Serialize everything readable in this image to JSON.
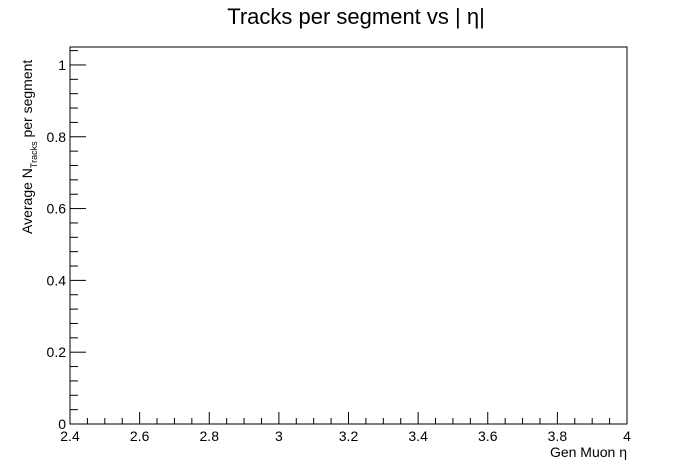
{
  "chart_data": {
    "type": "line",
    "title": "Tracks per segment vs | η|",
    "xlabel": "Gen Muon η",
    "ylabel": {
      "prefix": "Average N",
      "subscript": "Tracks",
      "suffix": " per segment"
    },
    "xlim": [
      2.4,
      4.0
    ],
    "ylim": [
      0,
      1.05
    ],
    "xticks": [
      "2.4",
      "2.6",
      "2.8",
      "3",
      "3.2",
      "3.4",
      "3.6",
      "3.8",
      "4"
    ],
    "yticks": [
      "0",
      "0.2",
      "0.4",
      "0.6",
      "0.8",
      "1"
    ],
    "series": [],
    "grid": false,
    "legend": "none"
  }
}
